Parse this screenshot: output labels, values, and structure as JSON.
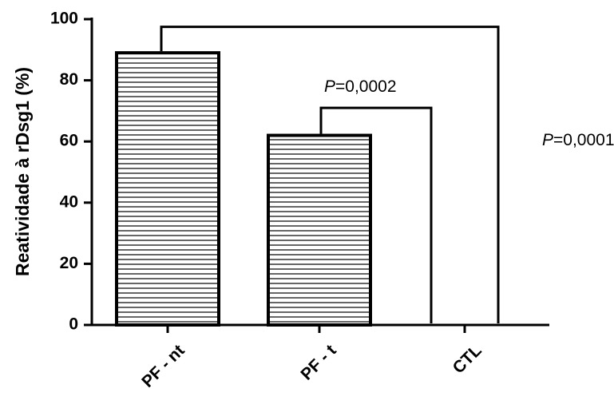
{
  "chart_data": {
    "type": "bar",
    "title": "",
    "xlabel": "",
    "ylabel": "Reatividade à rDsg1 (%)",
    "ylim": [
      0,
      100
    ],
    "yticks": [
      "0",
      "20",
      "40",
      "60",
      "80",
      "100"
    ],
    "categories": [
      "PF - nt",
      "PF - t",
      "CTL"
    ],
    "values": [
      89,
      62,
      0
    ],
    "bar_pattern": "horizontal-stripes",
    "grid": false,
    "annotations": [
      {
        "p_label": "P",
        "p_value": "=0,0002",
        "from": "PF - t",
        "to": "CTL",
        "y": 71
      },
      {
        "p_label": "P",
        "p_value": "=0,0001",
        "from": "PF - nt",
        "to": "CTL",
        "y": 97.5
      }
    ]
  }
}
